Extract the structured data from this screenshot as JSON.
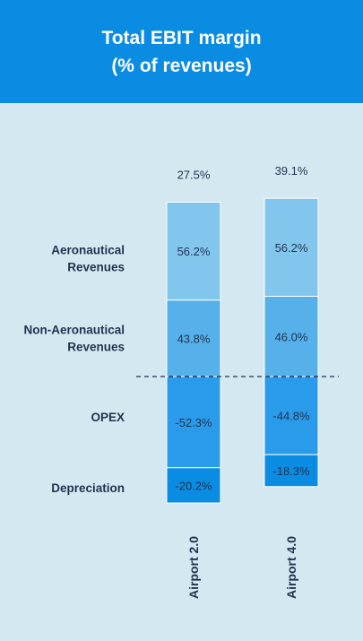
{
  "header": {
    "title_line1": "Total EBIT margin",
    "title_line2": "(% of revenues)"
  },
  "colors": {
    "header_bg": "#0a8ce3",
    "page_bg": "#d4e8f1",
    "aeronautical": "#82c6ee",
    "non_aeronautical": "#56b0ea",
    "opex": "#2a9bea",
    "depreciation": "#0a8ce3",
    "text": "#1f3350",
    "baseline": "#1f3350"
  },
  "chart_data": {
    "type": "bar",
    "stacked": true,
    "categories": [
      "Airport 2.0",
      "Airport 4.0"
    ],
    "totals": [
      "27.5%",
      "39.1%"
    ],
    "total_values": [
      27.5,
      39.1
    ],
    "row_labels": [
      [
        "Aeronautical",
        "Revenues"
      ],
      [
        "Non-Aeronautical",
        "Revenues"
      ],
      [
        "OPEX"
      ],
      [
        "Depreciation"
      ]
    ],
    "series": [
      {
        "key": "aeronautical",
        "values": [
          56.2,
          56.2
        ],
        "labels": [
          "56.2%",
          "56.2%"
        ]
      },
      {
        "key": "non_aeronautical",
        "values": [
          43.8,
          46.0
        ],
        "labels": [
          "43.8%",
          "46.0%"
        ]
      },
      {
        "key": "opex",
        "values": [
          -52.3,
          -44.8
        ],
        "labels": [
          "-52.3%",
          "-44.8%"
        ]
      },
      {
        "key": "depreciation",
        "values": [
          -20.2,
          -18.3
        ],
        "labels": [
          "-20.2%",
          "-18.3%"
        ]
      }
    ],
    "baseline_style": "dashed"
  }
}
